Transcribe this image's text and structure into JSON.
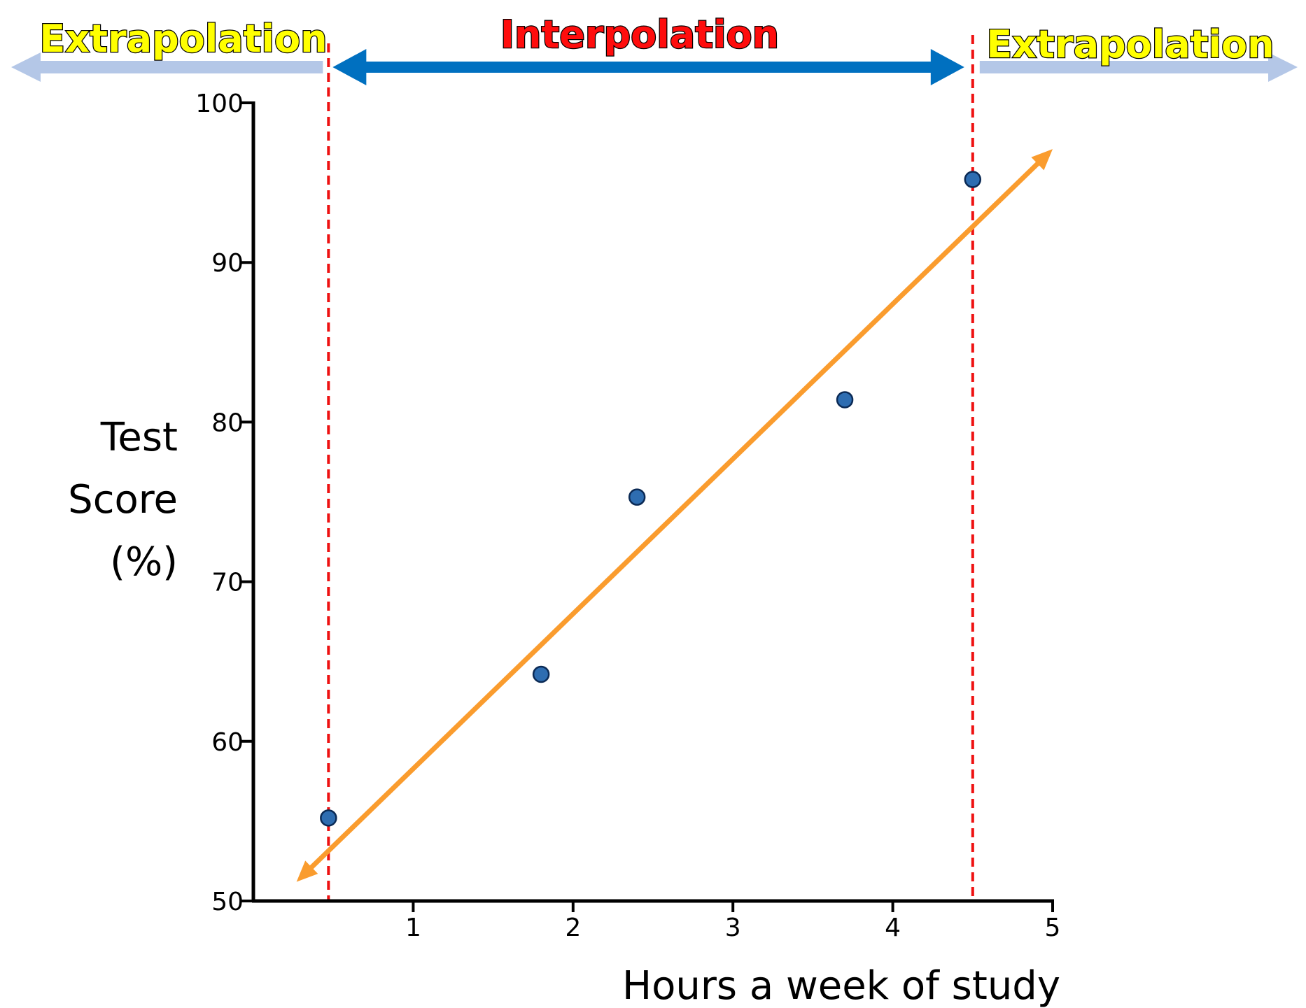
{
  "colors": {
    "interpolation_arrow": "#0070c0",
    "extrapolation_arrow": "#b4c7e7",
    "boundary_lines": "#ee1111",
    "fit_line": "#fa9c2e",
    "points": "#2e6db1",
    "extrapolation_text": "#ffff00",
    "interpolation_text": "#ff0d0d"
  },
  "regions": {
    "left_label": "Extrapolation",
    "center_label": "Interpolation",
    "right_label": "Extrapolation"
  },
  "chart_data": {
    "type": "scatter",
    "title": "",
    "xlabel": "Hours a week of study",
    "ylabel_lines": [
      "Test",
      "Score",
      "(%)"
    ],
    "xlim": [
      0,
      5
    ],
    "ylim": [
      50,
      100
    ],
    "x_ticks": [
      1,
      2,
      3,
      4,
      5
    ],
    "y_ticks": [
      50,
      60,
      70,
      80,
      90,
      100
    ],
    "grid": false,
    "series": [
      {
        "points": [
          {
            "x": 0.47,
            "y": 55.2
          },
          {
            "x": 1.8,
            "y": 64.2
          },
          {
            "x": 2.4,
            "y": 75.3
          },
          {
            "x": 3.7,
            "y": 81.4
          },
          {
            "x": 4.5,
            "y": 95.2
          }
        ]
      }
    ],
    "trend_line": {
      "type": "linear",
      "arrows": "both",
      "from": {
        "x": 0.27,
        "y": 51.2
      },
      "to": {
        "x": 5.0,
        "y": 97.1
      }
    },
    "interpolation_range": {
      "x_min": 0.47,
      "x_max": 4.5
    }
  }
}
